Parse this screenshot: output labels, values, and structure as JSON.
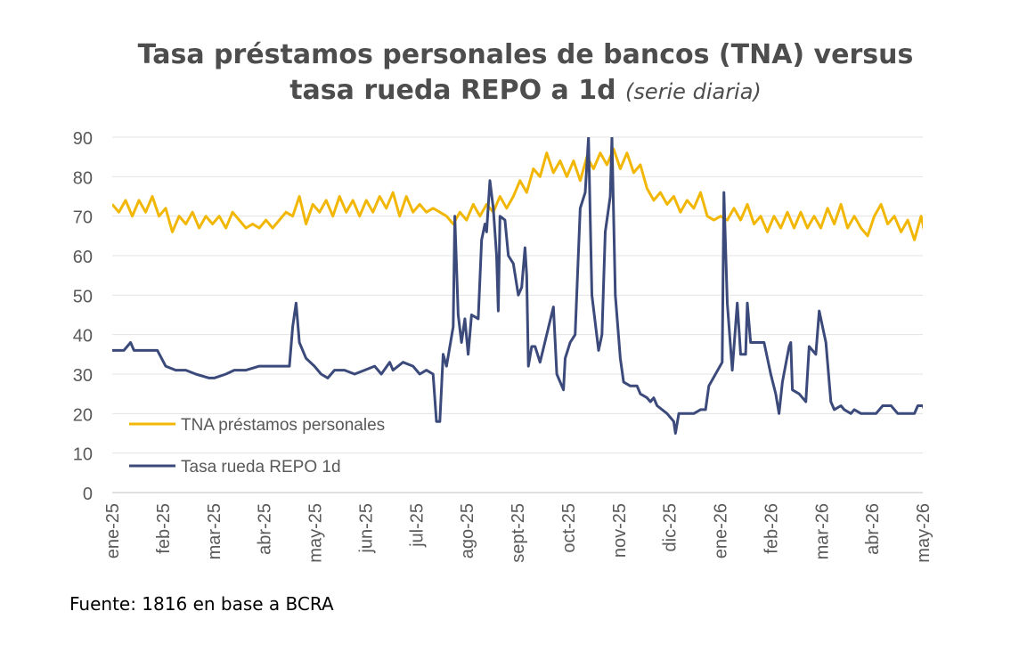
{
  "title_line1": "Tasa préstamos personales de bancos (TNA) versus",
  "title_line2_main": "tasa rueda REPO a 1d",
  "title_line2_italic": "(serie diaria)",
  "source": "Fuente: 1816 en base a BCRA",
  "colors": {
    "tna": "#f2b705",
    "repo": "#3b4a7a",
    "grid": "#e3e3e3",
    "axis": "#bfbfbf",
    "tick": "#595959"
  },
  "chart_data": {
    "type": "line",
    "ylim": [
      0,
      90
    ],
    "yticks": [
      0,
      10,
      20,
      30,
      40,
      50,
      60,
      70,
      80,
      90
    ],
    "xlim": [
      "2025-01-01",
      "2026-05-01"
    ],
    "xtick_labels": [
      "ene-25",
      "feb-25",
      "mar-25",
      "abr-25",
      "may-25",
      "jun-25",
      "jul-25",
      "ago-25",
      "sept-25",
      "oct-25",
      "nov-25",
      "dic-25",
      "ene-26",
      "feb-26",
      "mar-26",
      "abr-26",
      "may-26"
    ],
    "legend_position": "bottom-left (inside plot)",
    "grid": true,
    "series": [
      {
        "name": "TNA préstamos personales",
        "color": "#f2b705",
        "points": [
          [
            "2025-01-01",
            73
          ],
          [
            "2025-01-05",
            71
          ],
          [
            "2025-01-09",
            74
          ],
          [
            "2025-01-13",
            70
          ],
          [
            "2025-01-17",
            74
          ],
          [
            "2025-01-21",
            71
          ],
          [
            "2025-01-25",
            75
          ],
          [
            "2025-01-29",
            70
          ],
          [
            "2025-02-02",
            72
          ],
          [
            "2025-02-06",
            66
          ],
          [
            "2025-02-10",
            70
          ],
          [
            "2025-02-14",
            68
          ],
          [
            "2025-02-18",
            71
          ],
          [
            "2025-02-22",
            67
          ],
          [
            "2025-02-26",
            70
          ],
          [
            "2025-03-02",
            68
          ],
          [
            "2025-03-06",
            70
          ],
          [
            "2025-03-10",
            67
          ],
          [
            "2025-03-14",
            71
          ],
          [
            "2025-03-18",
            69
          ],
          [
            "2025-03-22",
            67
          ],
          [
            "2025-03-26",
            68
          ],
          [
            "2025-03-30",
            67
          ],
          [
            "2025-04-03",
            69
          ],
          [
            "2025-04-07",
            67
          ],
          [
            "2025-04-11",
            69
          ],
          [
            "2025-04-15",
            71
          ],
          [
            "2025-04-19",
            70
          ],
          [
            "2025-04-23",
            75
          ],
          [
            "2025-04-27",
            68
          ],
          [
            "2025-05-01",
            73
          ],
          [
            "2025-05-05",
            71
          ],
          [
            "2025-05-09",
            74
          ],
          [
            "2025-05-13",
            70
          ],
          [
            "2025-05-17",
            75
          ],
          [
            "2025-05-21",
            71
          ],
          [
            "2025-05-25",
            74
          ],
          [
            "2025-05-29",
            70
          ],
          [
            "2025-06-02",
            74
          ],
          [
            "2025-06-06",
            71
          ],
          [
            "2025-06-10",
            75
          ],
          [
            "2025-06-14",
            72
          ],
          [
            "2025-06-18",
            76
          ],
          [
            "2025-06-22",
            70
          ],
          [
            "2025-06-26",
            75
          ],
          [
            "2025-06-30",
            71
          ],
          [
            "2025-07-04",
            73
          ],
          [
            "2025-07-08",
            71
          ],
          [
            "2025-07-12",
            72
          ],
          [
            "2025-07-16",
            71
          ],
          [
            "2025-07-20",
            70
          ],
          [
            "2025-07-24",
            68
          ],
          [
            "2025-07-28",
            71
          ],
          [
            "2025-08-01",
            69
          ],
          [
            "2025-08-05",
            73
          ],
          [
            "2025-08-09",
            70
          ],
          [
            "2025-08-13",
            73
          ],
          [
            "2025-08-17",
            71
          ],
          [
            "2025-08-21",
            75
          ],
          [
            "2025-08-25",
            72
          ],
          [
            "2025-08-29",
            75
          ],
          [
            "2025-09-02",
            79
          ],
          [
            "2025-09-06",
            76
          ],
          [
            "2025-09-10",
            82
          ],
          [
            "2025-09-14",
            80
          ],
          [
            "2025-09-18",
            86
          ],
          [
            "2025-09-22",
            81
          ],
          [
            "2025-09-26",
            84
          ],
          [
            "2025-09-30",
            80
          ],
          [
            "2025-10-04",
            84
          ],
          [
            "2025-10-08",
            79
          ],
          [
            "2025-10-12",
            85
          ],
          [
            "2025-10-16",
            82
          ],
          [
            "2025-10-20",
            86
          ],
          [
            "2025-10-24",
            83
          ],
          [
            "2025-10-28",
            87
          ],
          [
            "2025-11-01",
            82
          ],
          [
            "2025-11-05",
            86
          ],
          [
            "2025-11-09",
            81
          ],
          [
            "2025-11-13",
            83
          ],
          [
            "2025-11-17",
            77
          ],
          [
            "2025-11-21",
            74
          ],
          [
            "2025-11-25",
            76
          ],
          [
            "2025-11-29",
            73
          ],
          [
            "2025-12-03",
            75
          ],
          [
            "2025-12-07",
            71
          ],
          [
            "2025-12-11",
            74
          ],
          [
            "2025-12-15",
            72
          ],
          [
            "2025-12-19",
            76
          ],
          [
            "2025-12-23",
            70
          ],
          [
            "2025-12-27",
            69
          ],
          [
            "2025-12-31",
            70
          ],
          [
            "2026-01-04",
            69
          ],
          [
            "2026-01-08",
            72
          ],
          [
            "2026-01-12",
            69
          ],
          [
            "2026-01-16",
            73
          ],
          [
            "2026-01-20",
            68
          ],
          [
            "2026-01-24",
            70
          ],
          [
            "2026-01-28",
            66
          ],
          [
            "2026-02-01",
            70
          ],
          [
            "2026-02-05",
            67
          ],
          [
            "2026-02-09",
            71
          ],
          [
            "2026-02-13",
            67
          ],
          [
            "2026-02-17",
            71
          ],
          [
            "2026-02-21",
            67
          ],
          [
            "2026-02-25",
            70
          ],
          [
            "2026-03-01",
            67
          ],
          [
            "2026-03-05",
            72
          ],
          [
            "2026-03-09",
            68
          ],
          [
            "2026-03-13",
            73
          ],
          [
            "2026-03-17",
            67
          ],
          [
            "2026-03-21",
            70
          ],
          [
            "2026-03-25",
            67
          ],
          [
            "2026-03-29",
            65
          ],
          [
            "2026-04-02",
            70
          ],
          [
            "2026-04-06",
            73
          ],
          [
            "2026-04-10",
            68
          ],
          [
            "2026-04-14",
            70
          ],
          [
            "2026-04-18",
            66
          ],
          [
            "2026-04-22",
            69
          ],
          [
            "2026-04-26",
            64
          ],
          [
            "2026-04-30",
            70
          ],
          [
            "2026-05-02",
            66
          ]
        ]
      },
      {
        "name": "Tasa rueda REPO 1d",
        "color": "#3b4a7a",
        "points": [
          [
            "2025-01-01",
            36
          ],
          [
            "2025-01-08",
            36
          ],
          [
            "2025-01-12",
            38
          ],
          [
            "2025-01-14",
            36
          ],
          [
            "2025-01-18",
            36
          ],
          [
            "2025-01-28",
            36
          ],
          [
            "2025-02-02",
            32
          ],
          [
            "2025-02-08",
            31
          ],
          [
            "2025-02-14",
            31
          ],
          [
            "2025-02-20",
            30
          ],
          [
            "2025-02-28",
            29
          ],
          [
            "2025-03-03",
            29
          ],
          [
            "2025-03-10",
            30
          ],
          [
            "2025-03-15",
            31
          ],
          [
            "2025-03-22",
            31
          ],
          [
            "2025-03-30",
            32
          ],
          [
            "2025-04-05",
            32
          ],
          [
            "2025-04-12",
            32
          ],
          [
            "2025-04-17",
            32
          ],
          [
            "2025-04-19",
            42
          ],
          [
            "2025-04-21",
            48
          ],
          [
            "2025-04-23",
            38
          ],
          [
            "2025-04-27",
            34
          ],
          [
            "2025-05-02",
            32
          ],
          [
            "2025-05-06",
            30
          ],
          [
            "2025-05-10",
            29
          ],
          [
            "2025-05-14",
            31
          ],
          [
            "2025-05-20",
            31
          ],
          [
            "2025-05-26",
            30
          ],
          [
            "2025-06-01",
            31
          ],
          [
            "2025-06-07",
            32
          ],
          [
            "2025-06-11",
            30
          ],
          [
            "2025-06-16",
            33
          ],
          [
            "2025-06-18",
            31
          ],
          [
            "2025-06-24",
            33
          ],
          [
            "2025-06-30",
            32
          ],
          [
            "2025-07-04",
            30
          ],
          [
            "2025-07-08",
            31
          ],
          [
            "2025-07-12",
            30
          ],
          [
            "2025-07-14",
            18
          ],
          [
            "2025-07-16",
            18
          ],
          [
            "2025-07-18",
            35
          ],
          [
            "2025-07-20",
            32
          ],
          [
            "2025-07-24",
            42
          ],
          [
            "2025-07-25",
            70
          ],
          [
            "2025-07-27",
            45
          ],
          [
            "2025-07-29",
            38
          ],
          [
            "2025-07-31",
            44
          ],
          [
            "2025-08-02",
            35
          ],
          [
            "2025-08-04",
            45
          ],
          [
            "2025-08-08",
            44
          ],
          [
            "2025-08-10",
            64
          ],
          [
            "2025-08-12",
            68
          ],
          [
            "2025-08-13",
            66
          ],
          [
            "2025-08-15",
            79
          ],
          [
            "2025-08-17",
            72
          ],
          [
            "2025-08-19",
            60
          ],
          [
            "2025-08-20",
            46
          ],
          [
            "2025-08-21",
            70
          ],
          [
            "2025-08-24",
            69
          ],
          [
            "2025-08-26",
            60
          ],
          [
            "2025-08-29",
            58
          ],
          [
            "2025-09-01",
            50
          ],
          [
            "2025-09-03",
            52
          ],
          [
            "2025-09-05",
            62
          ],
          [
            "2025-09-06",
            55
          ],
          [
            "2025-09-07",
            32
          ],
          [
            "2025-09-09",
            37
          ],
          [
            "2025-09-11",
            37
          ],
          [
            "2025-09-14",
            33
          ],
          [
            "2025-09-18",
            40
          ],
          [
            "2025-09-22",
            47
          ],
          [
            "2025-09-24",
            30
          ],
          [
            "2025-09-28",
            26
          ],
          [
            "2025-09-29",
            34
          ],
          [
            "2025-10-02",
            38
          ],
          [
            "2025-10-05",
            40
          ],
          [
            "2025-10-08",
            72
          ],
          [
            "2025-10-11",
            76
          ],
          [
            "2025-10-13",
            90
          ],
          [
            "2025-10-15",
            50
          ],
          [
            "2025-10-19",
            36
          ],
          [
            "2025-10-21",
            40
          ],
          [
            "2025-10-23",
            66
          ],
          [
            "2025-10-26",
            75
          ],
          [
            "2025-10-27",
            90
          ],
          [
            "2025-10-29",
            50
          ],
          [
            "2025-11-01",
            34
          ],
          [
            "2025-11-03",
            28
          ],
          [
            "2025-11-07",
            27
          ],
          [
            "2025-11-11",
            27
          ],
          [
            "2025-11-13",
            25
          ],
          [
            "2025-11-17",
            24
          ],
          [
            "2025-11-19",
            23
          ],
          [
            "2025-11-21",
            24
          ],
          [
            "2025-11-23",
            22
          ],
          [
            "2025-11-29",
            20
          ],
          [
            "2025-12-03",
            18
          ],
          [
            "2025-12-04",
            15
          ],
          [
            "2025-12-06",
            20
          ],
          [
            "2025-12-11",
            20
          ],
          [
            "2025-12-15",
            20
          ],
          [
            "2025-12-19",
            21
          ],
          [
            "2025-12-22",
            21
          ],
          [
            "2025-12-24",
            27
          ],
          [
            "2025-12-28",
            30
          ],
          [
            "2026-01-01",
            33
          ],
          [
            "2026-01-02",
            76
          ],
          [
            "2026-01-04",
            48
          ],
          [
            "2026-01-07",
            31
          ],
          [
            "2026-01-10",
            48
          ],
          [
            "2026-01-12",
            35
          ],
          [
            "2026-01-15",
            35
          ],
          [
            "2026-01-16",
            48
          ],
          [
            "2026-01-18",
            38
          ],
          [
            "2026-01-22",
            38
          ],
          [
            "2026-01-26",
            38
          ],
          [
            "2026-01-30",
            30
          ],
          [
            "2026-02-02",
            25
          ],
          [
            "2026-02-04",
            20
          ],
          [
            "2026-02-06",
            28
          ],
          [
            "2026-02-10",
            37
          ],
          [
            "2026-02-11",
            38
          ],
          [
            "2026-02-12",
            26
          ],
          [
            "2026-02-16",
            25
          ],
          [
            "2026-02-20",
            23
          ],
          [
            "2026-02-22",
            37
          ],
          [
            "2026-02-26",
            35
          ],
          [
            "2026-02-28",
            46
          ],
          [
            "2026-03-04",
            38
          ],
          [
            "2026-03-07",
            23
          ],
          [
            "2026-03-09",
            21
          ],
          [
            "2026-03-13",
            22
          ],
          [
            "2026-03-15",
            21
          ],
          [
            "2026-03-19",
            20
          ],
          [
            "2026-03-21",
            21
          ],
          [
            "2026-03-25",
            20
          ],
          [
            "2026-03-30",
            20
          ],
          [
            "2026-04-03",
            20
          ],
          [
            "2026-04-07",
            22
          ],
          [
            "2026-04-12",
            22
          ],
          [
            "2026-04-16",
            20
          ],
          [
            "2026-04-22",
            20
          ],
          [
            "2026-04-26",
            20
          ],
          [
            "2026-04-28",
            22
          ],
          [
            "2026-05-01",
            22
          ],
          [
            "2026-05-02",
            21
          ]
        ]
      }
    ]
  }
}
